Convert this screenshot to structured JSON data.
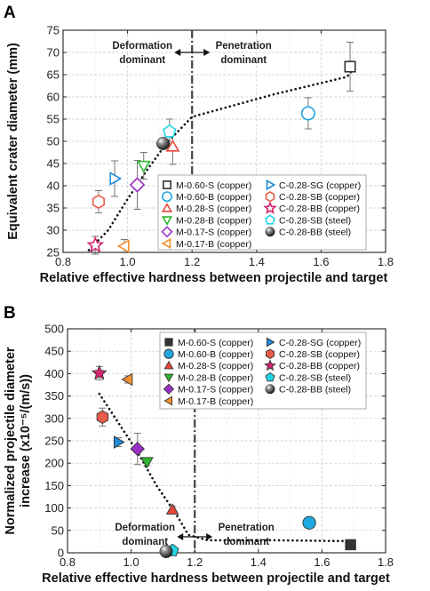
{
  "chart_data": [
    {
      "panel": "A",
      "type": "scatter",
      "xlabel": "Relative effective hardness between projectile and target",
      "ylabel": "Equivalent crater diameter (mm)",
      "xlim": [
        0.8,
        1.8
      ],
      "ylim": [
        25,
        75
      ],
      "xticks": [
        "0.8",
        "1.0",
        "1.2",
        "1.4",
        "1.6",
        "1.8"
      ],
      "yticks": [
        "25",
        "30",
        "35",
        "40",
        "45",
        "50",
        "55",
        "60",
        "65",
        "70",
        "75"
      ],
      "grid": true,
      "marker_style": "open",
      "legend_position": "bottom-right",
      "divider_x": 1.2,
      "annotations": {
        "left": [
          "Deformation",
          "dominant"
        ],
        "right": [
          "Penetration",
          "dominant"
        ]
      },
      "trend_line": [
        [
          0.88,
          25.5
        ],
        [
          0.94,
          30
        ],
        [
          1.0,
          37
        ],
        [
          1.06,
          43.5
        ],
        [
          1.12,
          49.5
        ],
        [
          1.2,
          55.5
        ],
        [
          1.45,
          60.5
        ],
        [
          1.68,
          64.5
        ],
        [
          1.71,
          67
        ]
      ],
      "series": [
        {
          "name": "M-0.60-S (copper)",
          "marker": "square",
          "color": "#333333",
          "x": 1.69,
          "y": 66.8,
          "err": 5.5
        },
        {
          "name": "M-0.60-B (copper)",
          "marker": "circle",
          "color": "#1fa8e0",
          "x": 1.56,
          "y": 56.3,
          "err": 3.5
        },
        {
          "name": "M-0.28-S (copper)",
          "marker": "triangle-up",
          "color": "#e8463c",
          "x": 1.14,
          "y": 48.8,
          "err": 4
        },
        {
          "name": "M-0.28-B (copper)",
          "marker": "triangle-down",
          "color": "#2db82d",
          "x": 1.05,
          "y": 44.5,
          "err": 3
        },
        {
          "name": "M-0.17-S (copper)",
          "marker": "diamond",
          "color": "#9b2fc7",
          "x": 1.03,
          "y": 40.2,
          "err": 5.5
        },
        {
          "name": "M-0.17-B (copper)",
          "marker": "triangle-left",
          "color": "#f29030",
          "x": 0.99,
          "y": 26.4,
          "err": 1.5
        },
        {
          "name": "C-0.28-SG (copper)",
          "marker": "triangle-right",
          "color": "#1f8ad6",
          "x": 0.96,
          "y": 41.6,
          "err": 4
        },
        {
          "name": "C-0.28-SB (copper)",
          "marker": "hexagon",
          "color": "#e85c4a",
          "x": 0.91,
          "y": 36.4,
          "err": 2.5
        },
        {
          "name": "C-0.28-BB (copper)",
          "marker": "star",
          "color": "#d6246e",
          "x": 0.9,
          "y": 26.6,
          "err": 2
        },
        {
          "name": "C-0.28-SB (steel)",
          "marker": "pentagon",
          "color": "#22d4e8",
          "x": 1.13,
          "y": 52.2,
          "err": 2.8
        },
        {
          "name": "C-0.28-BB (steel)",
          "marker": "sphere",
          "color": "#333333",
          "x": 1.11,
          "y": 49.5,
          "err": 0
        }
      ]
    },
    {
      "panel": "B",
      "type": "scatter",
      "xlabel": "Relative effective hardness between projectile and target",
      "ylabel_lines": [
        "Normalized projectile diameter",
        "increase (x10⁻⁵/(m/s))"
      ],
      "xlim": [
        0.8,
        1.8
      ],
      "ylim": [
        0,
        500
      ],
      "xticks": [
        "0.8",
        "1.0",
        "1.2",
        "1.4",
        "1.6",
        "1.8"
      ],
      "yticks": [
        "0",
        "50",
        "100",
        "150",
        "200",
        "250",
        "300",
        "350",
        "400",
        "450",
        "500"
      ],
      "grid": true,
      "marker_style": "filled",
      "legend_position": "top-right",
      "divider_x": 1.2,
      "annotations": {
        "left": [
          "Deformation",
          "dominant"
        ],
        "right": [
          "Penetration",
          "dominant"
        ]
      },
      "trend_line": [
        [
          0.9,
          355
        ],
        [
          0.96,
          290
        ],
        [
          1.02,
          225
        ],
        [
          1.08,
          150
        ],
        [
          1.14,
          88
        ],
        [
          1.18,
          40
        ],
        [
          1.24,
          28
        ],
        [
          1.45,
          28
        ],
        [
          1.69,
          26
        ]
      ],
      "series": [
        {
          "name": "M-0.60-S (copper)",
          "marker": "square",
          "color": "#333333",
          "x": 1.69,
          "y": 18,
          "err": 0
        },
        {
          "name": "M-0.60-B (copper)",
          "marker": "circle",
          "color": "#1fa8e0",
          "x": 1.56,
          "y": 67,
          "err": 10
        },
        {
          "name": "M-0.28-S (copper)",
          "marker": "triangle-up",
          "color": "#e8463c",
          "x": 1.13,
          "y": 96,
          "err": 8
        },
        {
          "name": "M-0.28-B (copper)",
          "marker": "triangle-down",
          "color": "#2db82d",
          "x": 1.05,
          "y": 203,
          "err": 8
        },
        {
          "name": "M-0.17-S (copper)",
          "marker": "diamond",
          "color": "#9b2fc7",
          "x": 1.02,
          "y": 232,
          "err": 35
        },
        {
          "name": "M-0.17-B (copper)",
          "marker": "triangle-left",
          "color": "#f29030",
          "x": 0.99,
          "y": 387,
          "err": 8
        },
        {
          "name": "C-0.28-SG (copper)",
          "marker": "triangle-right",
          "color": "#1f8ad6",
          "x": 0.96,
          "y": 247,
          "err": 10
        },
        {
          "name": "C-0.28-SB (copper)",
          "marker": "hexagon",
          "color": "#e85c4a",
          "x": 0.91,
          "y": 303,
          "err": 20
        },
        {
          "name": "C-0.28-BB (copper)",
          "marker": "star",
          "color": "#d6246e",
          "x": 0.9,
          "y": 401,
          "err": 15
        },
        {
          "name": "C-0.28-SB (steel)",
          "marker": "pentagon",
          "color": "#22d4e8",
          "x": 1.13,
          "y": 5,
          "err": 0
        },
        {
          "name": "C-0.28-BB (steel)",
          "marker": "sphere",
          "color": "#333333",
          "x": 1.11,
          "y": 3,
          "err": 0
        }
      ]
    }
  ]
}
